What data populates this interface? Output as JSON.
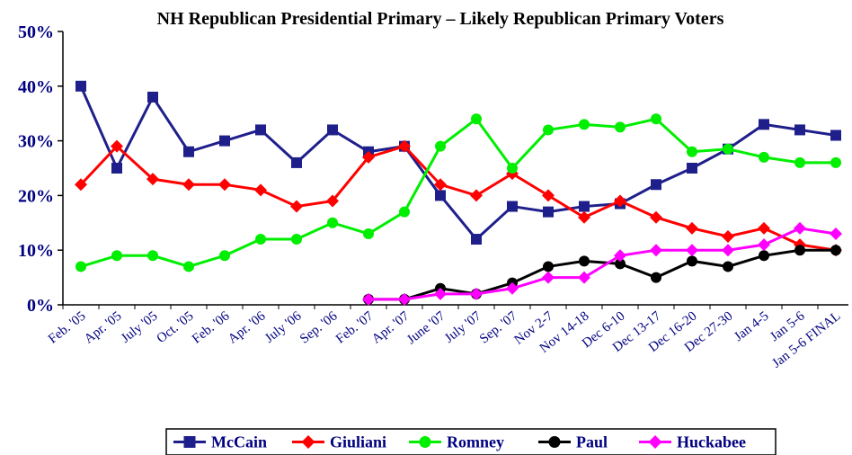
{
  "chart_data": {
    "type": "line",
    "title": "NH Republican Presidential Primary – Likely Republican Primary Voters",
    "xlabel": "",
    "ylabel": "",
    "ylim": [
      0,
      50
    ],
    "yticks": [
      0,
      10,
      20,
      30,
      40,
      50
    ],
    "ytick_labels": [
      "0%",
      "10%",
      "20%",
      "30%",
      "40%",
      "50%"
    ],
    "grid": false,
    "legend_position": "bottom",
    "categories": [
      "Feb. '05",
      "Apr. '05",
      "July '05",
      "Oct. '05",
      "Feb. '06",
      "Apr. '06",
      "July '06",
      "Sep. '06",
      "Feb. '07",
      "Apr. '07",
      "June '07",
      "July '07",
      "Sep. '07",
      "Nov 2-7",
      "Nov 14-18",
      "Dec 6-10",
      "Dec 13-17",
      "Dec 16-20",
      "Dec 27-30",
      "Jan 4-5",
      "Jan 5-6",
      "Jan 5-6 FINAL"
    ],
    "series": [
      {
        "name": "McCain",
        "color": "#1f1f8c",
        "marker": "square",
        "values": [
          40,
          25,
          38,
          28,
          30,
          32,
          26,
          32,
          28,
          29,
          20,
          12,
          18,
          17,
          18,
          18.5,
          22,
          25,
          28.5,
          33,
          32,
          31
        ]
      },
      {
        "name": "Giuliani",
        "color": "#ff0000",
        "marker": "diamond",
        "values": [
          22,
          29,
          23,
          22,
          22,
          21,
          18,
          19,
          27,
          29,
          22,
          20,
          24,
          20,
          16,
          19,
          16,
          14,
          12.5,
          14,
          11,
          10
        ]
      },
      {
        "name": "Romney",
        "color": "#00ee00",
        "marker": "circle",
        "values": [
          7,
          9,
          9,
          7,
          9,
          12,
          12,
          15,
          13,
          17,
          29,
          34,
          25,
          32,
          33,
          32.5,
          34,
          28,
          28.5,
          27,
          26,
          26
        ]
      },
      {
        "name": "Paul",
        "color": "#000000",
        "marker": "circle",
        "values": [
          null,
          null,
          null,
          null,
          null,
          null,
          null,
          null,
          1,
          1,
          3,
          2,
          4,
          7,
          8,
          7.5,
          5,
          8,
          7,
          9,
          10,
          10
        ]
      },
      {
        "name": "Huckabee",
        "color": "#ff00ff",
        "marker": "diamond",
        "values": [
          null,
          null,
          null,
          null,
          null,
          null,
          null,
          null,
          1,
          1,
          2,
          2,
          3,
          5,
          5,
          9,
          10,
          10,
          10,
          11,
          14,
          13
        ]
      }
    ]
  }
}
